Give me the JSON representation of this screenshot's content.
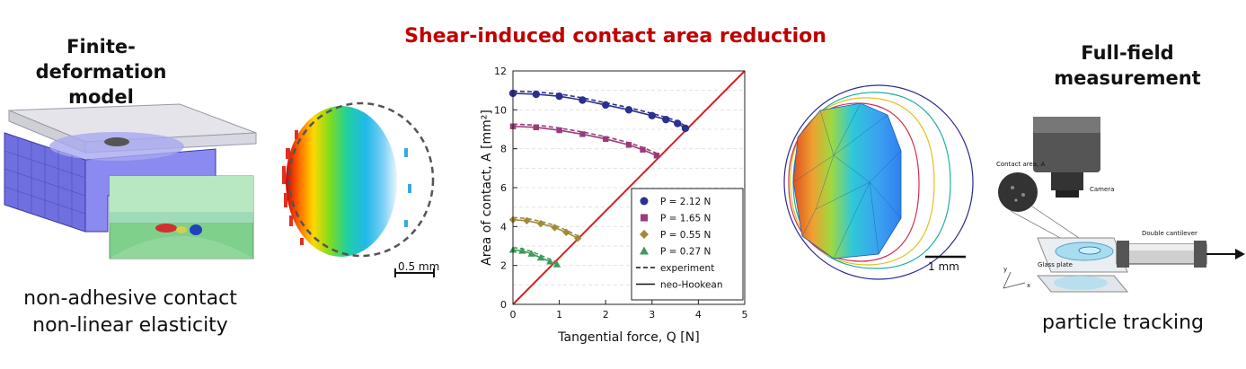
{
  "left_panel": {
    "title_line1": "Finite-deformation",
    "title_line2": "model",
    "caption_line1": "non-adhesive contact",
    "caption_line2": "non-linear elasticity"
  },
  "center": {
    "title": "Shear-induced contact area reduction",
    "left_scale": "0.5 mm",
    "right_scale": "1 mm"
  },
  "right_panel": {
    "title_line1": "Full-field",
    "title_line2": "measurement",
    "caption": "particle tracking",
    "label_contact": "Contact area, A",
    "label_camera": "Camera",
    "label_cantilever": "Double cantilever",
    "label_glass": "Glass plate",
    "axis_y": "y",
    "axis_x": "x"
  },
  "chart_data": {
    "type": "line",
    "xlabel": "Tangential force, Q [N]",
    "ylabel": "Area of contact, A [mm²]",
    "xlim": [
      0,
      5
    ],
    "ylim": [
      0,
      12
    ],
    "xticks": [
      "0",
      "1",
      "2",
      "3",
      "4",
      "5"
    ],
    "yticks": [
      "0",
      "2",
      "4",
      "6",
      "8",
      "10",
      "12"
    ],
    "series": [
      {
        "name": "P = 2.12 N",
        "marker": "circle",
        "color": "#2b2f8f",
        "x": [
          0,
          0.5,
          1.0,
          1.5,
          2.0,
          2.5,
          3.0,
          3.3,
          3.55,
          3.72
        ],
        "y": [
          10.85,
          10.8,
          10.7,
          10.5,
          10.25,
          10.0,
          9.7,
          9.5,
          9.3,
          9.05
        ]
      },
      {
        "name": "P = 1.65 N",
        "marker": "square",
        "color": "#9b3b7a",
        "x": [
          0,
          0.5,
          1.0,
          1.5,
          2.0,
          2.5,
          2.8,
          3.1
        ],
        "y": [
          9.15,
          9.1,
          8.95,
          8.75,
          8.5,
          8.2,
          7.95,
          7.65
        ]
      },
      {
        "name": "P = 0.55 N",
        "marker": "diamond",
        "color": "#a08a3a",
        "x": [
          0,
          0.3,
          0.6,
          0.9,
          1.15,
          1.4
        ],
        "y": [
          4.35,
          4.3,
          4.15,
          3.95,
          3.7,
          3.4
        ]
      },
      {
        "name": "P = 0.27 N",
        "marker": "triangle",
        "color": "#3f9a5a",
        "x": [
          0,
          0.2,
          0.4,
          0.6,
          0.8,
          0.95
        ],
        "y": [
          2.8,
          2.75,
          2.6,
          2.4,
          2.2,
          2.05
        ]
      },
      {
        "name": "experiment",
        "style": "dashed",
        "color": "#111111"
      },
      {
        "name": "neo-Hookean",
        "style": "solid",
        "color": "#111111"
      }
    ],
    "reference_line": {
      "x": [
        0,
        5
      ],
      "y": [
        0,
        12
      ],
      "color": "#d42020"
    },
    "legend": "bottom-right"
  }
}
